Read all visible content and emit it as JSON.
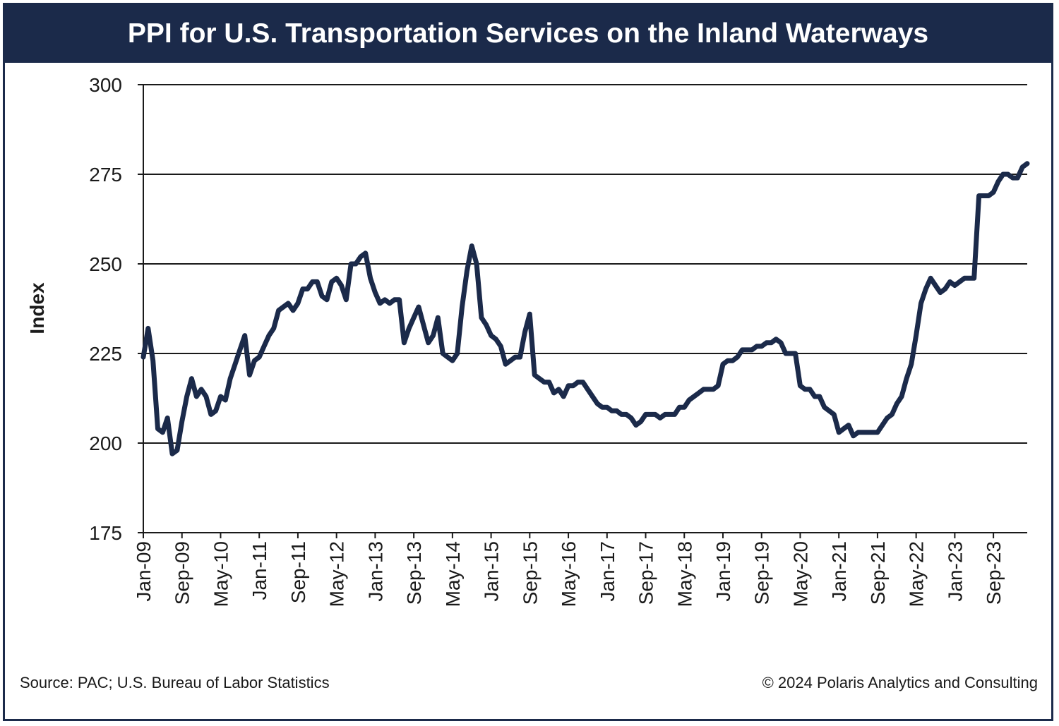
{
  "chart_data": {
    "type": "line",
    "title": "PPI for U.S. Transportation Services on the Inland Waterways",
    "ylabel": "Index",
    "xlabel": "",
    "ylim": [
      175,
      300
    ],
    "yticks": [
      175,
      200,
      225,
      250,
      275,
      300
    ],
    "xticks": [
      "Jan-09",
      "Sep-09",
      "May-10",
      "Jan-11",
      "Sep-11",
      "May-12",
      "Jan-13",
      "Sep-13",
      "May-14",
      "Jan-15",
      "Sep-15",
      "May-16",
      "Jan-17",
      "Sep-17",
      "May-18",
      "Jan-19",
      "Sep-19",
      "May-20",
      "Jan-21",
      "Sep-21",
      "May-22",
      "Jan-23",
      "Sep-23"
    ],
    "grid": "horizontal",
    "line_color": "#1b2a4a",
    "series": [
      {
        "points": [
          [
            "Jan-09",
            224
          ],
          [
            "Feb-09",
            232
          ],
          [
            "Mar-09",
            223
          ],
          [
            "Apr-09",
            204
          ],
          [
            "May-09",
            203
          ],
          [
            "Jun-09",
            207
          ],
          [
            "Jul-09",
            197
          ],
          [
            "Aug-09",
            198
          ],
          [
            "Sep-09",
            206
          ],
          [
            "Oct-09",
            213
          ],
          [
            "Nov-09",
            218
          ],
          [
            "Dec-09",
            213
          ],
          [
            "Jan-10",
            215
          ],
          [
            "Feb-10",
            213
          ],
          [
            "Mar-10",
            208
          ],
          [
            "Apr-10",
            209
          ],
          [
            "May-10",
            213
          ],
          [
            "Jun-10",
            212
          ],
          [
            "Jul-10",
            218
          ],
          [
            "Aug-10",
            222
          ],
          [
            "Sep-10",
            226
          ],
          [
            "Oct-10",
            230
          ],
          [
            "Nov-10",
            219
          ],
          [
            "Dec-10",
            223
          ],
          [
            "Jan-11",
            224
          ],
          [
            "Feb-11",
            227
          ],
          [
            "Mar-11",
            230
          ],
          [
            "Apr-11",
            232
          ],
          [
            "May-11",
            237
          ],
          [
            "Jun-11",
            238
          ],
          [
            "Jul-11",
            239
          ],
          [
            "Aug-11",
            237
          ],
          [
            "Sep-11",
            239
          ],
          [
            "Oct-11",
            243
          ],
          [
            "Nov-11",
            243
          ],
          [
            "Dec-11",
            245
          ],
          [
            "Jan-12",
            245
          ],
          [
            "Feb-12",
            241
          ],
          [
            "Mar-12",
            240
          ],
          [
            "Apr-12",
            245
          ],
          [
            "May-12",
            246
          ],
          [
            "Jun-12",
            244
          ],
          [
            "Jul-12",
            240
          ],
          [
            "Aug-12",
            250
          ],
          [
            "Sep-12",
            250
          ],
          [
            "Oct-12",
            252
          ],
          [
            "Nov-12",
            253
          ],
          [
            "Dec-12",
            246
          ],
          [
            "Jan-13",
            242
          ],
          [
            "Feb-13",
            239
          ],
          [
            "Mar-13",
            240
          ],
          [
            "Apr-13",
            239
          ],
          [
            "May-13",
            240
          ],
          [
            "Jun-13",
            240
          ],
          [
            "Jul-13",
            228
          ],
          [
            "Aug-13",
            232
          ],
          [
            "Sep-13",
            235
          ],
          [
            "Oct-13",
            238
          ],
          [
            "Nov-13",
            233
          ],
          [
            "Dec-13",
            228
          ],
          [
            "Jan-14",
            230
          ],
          [
            "Feb-14",
            235
          ],
          [
            "Mar-14",
            225
          ],
          [
            "Apr-14",
            224
          ],
          [
            "May-14",
            223
          ],
          [
            "Jun-14",
            225
          ],
          [
            "Jul-14",
            238
          ],
          [
            "Aug-14",
            248
          ],
          [
            "Sep-14",
            255
          ],
          [
            "Oct-14",
            250
          ],
          [
            "Nov-14",
            235
          ],
          [
            "Dec-14",
            233
          ],
          [
            "Jan-15",
            230
          ],
          [
            "Feb-15",
            229
          ],
          [
            "Mar-15",
            227
          ],
          [
            "Apr-15",
            222
          ],
          [
            "May-15",
            223
          ],
          [
            "Jun-15",
            224
          ],
          [
            "Jul-15",
            224
          ],
          [
            "Aug-15",
            231
          ],
          [
            "Sep-15",
            236
          ],
          [
            "Oct-15",
            219
          ],
          [
            "Nov-15",
            218
          ],
          [
            "Dec-15",
            217
          ],
          [
            "Jan-16",
            217
          ],
          [
            "Feb-16",
            214
          ],
          [
            "Mar-16",
            215
          ],
          [
            "Apr-16",
            213
          ],
          [
            "May-16",
            216
          ],
          [
            "Jun-16",
            216
          ],
          [
            "Jul-16",
            217
          ],
          [
            "Aug-16",
            217
          ],
          [
            "Sep-16",
            215
          ],
          [
            "Oct-16",
            213
          ],
          [
            "Nov-16",
            211
          ],
          [
            "Dec-16",
            210
          ],
          [
            "Jan-17",
            210
          ],
          [
            "Feb-17",
            209
          ],
          [
            "Mar-17",
            209
          ],
          [
            "Apr-17",
            208
          ],
          [
            "May-17",
            208
          ],
          [
            "Jun-17",
            207
          ],
          [
            "Jul-17",
            205
          ],
          [
            "Aug-17",
            206
          ],
          [
            "Sep-17",
            208
          ],
          [
            "Oct-17",
            208
          ],
          [
            "Nov-17",
            208
          ],
          [
            "Dec-17",
            207
          ],
          [
            "Jan-18",
            208
          ],
          [
            "Feb-18",
            208
          ],
          [
            "Mar-18",
            208
          ],
          [
            "Apr-18",
            210
          ],
          [
            "May-18",
            210
          ],
          [
            "Jun-18",
            212
          ],
          [
            "Jul-18",
            213
          ],
          [
            "Aug-18",
            214
          ],
          [
            "Sep-18",
            215
          ],
          [
            "Oct-18",
            215
          ],
          [
            "Nov-18",
            215
          ],
          [
            "Dec-18",
            216
          ],
          [
            "Jan-19",
            222
          ],
          [
            "Feb-19",
            223
          ],
          [
            "Mar-19",
            223
          ],
          [
            "Apr-19",
            224
          ],
          [
            "May-19",
            226
          ],
          [
            "Jun-19",
            226
          ],
          [
            "Jul-19",
            226
          ],
          [
            "Aug-19",
            227
          ],
          [
            "Sep-19",
            227
          ],
          [
            "Oct-19",
            228
          ],
          [
            "Nov-19",
            228
          ],
          [
            "Dec-19",
            229
          ],
          [
            "Jan-20",
            228
          ],
          [
            "Feb-20",
            225
          ],
          [
            "Mar-20",
            225
          ],
          [
            "Apr-20",
            225
          ],
          [
            "May-20",
            216
          ],
          [
            "Jun-20",
            215
          ],
          [
            "Jul-20",
            215
          ],
          [
            "Aug-20",
            213
          ],
          [
            "Sep-20",
            213
          ],
          [
            "Oct-20",
            210
          ],
          [
            "Nov-20",
            209
          ],
          [
            "Dec-20",
            208
          ],
          [
            "Jan-21",
            203
          ],
          [
            "Feb-21",
            204
          ],
          [
            "Mar-21",
            205
          ],
          [
            "Apr-21",
            202
          ],
          [
            "May-21",
            203
          ],
          [
            "Jun-21",
            203
          ],
          [
            "Jul-21",
            203
          ],
          [
            "Aug-21",
            203
          ],
          [
            "Sep-21",
            203
          ],
          [
            "Oct-21",
            205
          ],
          [
            "Nov-21",
            207
          ],
          [
            "Dec-21",
            208
          ],
          [
            "Jan-22",
            211
          ],
          [
            "Feb-22",
            213
          ],
          [
            "Mar-22",
            218
          ],
          [
            "Apr-22",
            222
          ],
          [
            "May-22",
            230
          ],
          [
            "Jun-22",
            239
          ],
          [
            "Jul-22",
            243
          ],
          [
            "Aug-22",
            246
          ],
          [
            "Sep-22",
            244
          ],
          [
            "Oct-22",
            242
          ],
          [
            "Nov-22",
            243
          ],
          [
            "Dec-22",
            245
          ],
          [
            "Jan-23",
            244
          ],
          [
            "Feb-23",
            245
          ],
          [
            "Mar-23",
            246
          ],
          [
            "Apr-23",
            246
          ],
          [
            "May-23",
            246
          ],
          [
            "Jun-23",
            269
          ],
          [
            "Jul-23",
            269
          ],
          [
            "Aug-23",
            269
          ],
          [
            "Sep-23",
            270
          ],
          [
            "Oct-23",
            273
          ],
          [
            "Nov-23",
            275
          ],
          [
            "Dec-23",
            275
          ],
          [
            "Jan-24",
            274
          ],
          [
            "Feb-24",
            274
          ],
          [
            "Mar-24",
            277
          ],
          [
            "Apr-24",
            278
          ]
        ]
      }
    ]
  },
  "footer": {
    "source": "Source: PAC; U.S. Bureau of Labor Statistics",
    "copyright": "© 2024 Polaris Analytics and Consulting"
  }
}
